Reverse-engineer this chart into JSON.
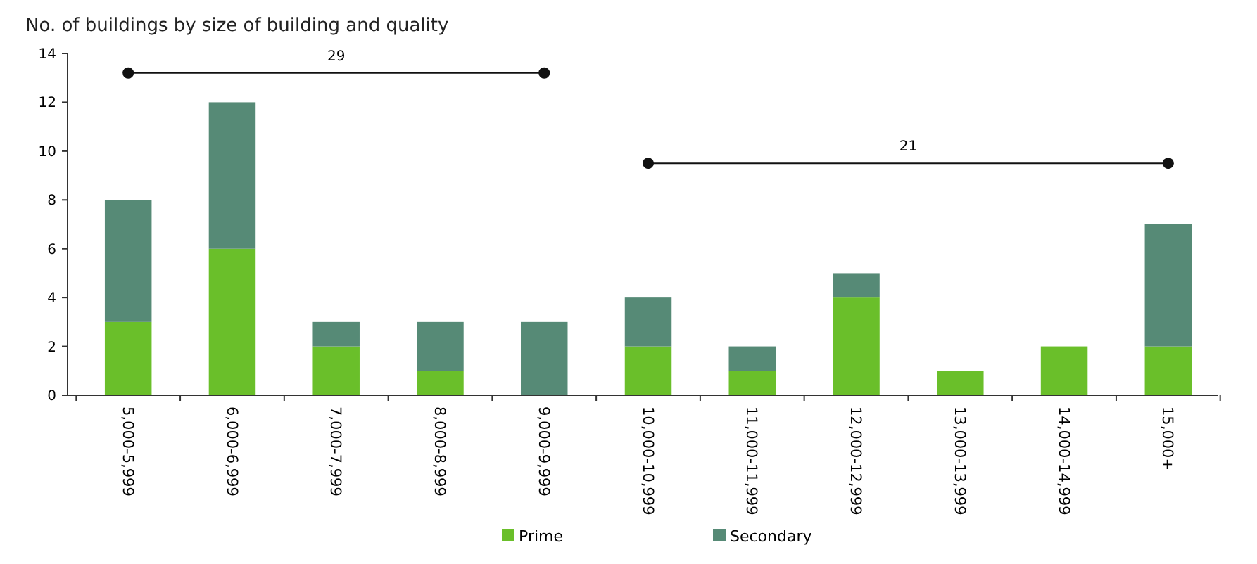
{
  "chart_data": {
    "type": "bar",
    "title": "No. of buildings by size of building and quality",
    "stacked": true,
    "categories": [
      "5,000-5,999",
      "6,000-6,999",
      "7,000-7,999",
      "8,000-8,999",
      "9,000-9,999",
      "10,000-10,999",
      "11,000-11,999",
      "12,000-12,999",
      "13,000-13,999",
      "14,000-14,999",
      "15,000+"
    ],
    "series": [
      {
        "name": "Prime",
        "color": "#6abf2a",
        "values": [
          3,
          6,
          2,
          1,
          0,
          2,
          1,
          4,
          1,
          2,
          2
        ]
      },
      {
        "name": "Secondary",
        "color": "#568a76",
        "values": [
          5,
          6,
          1,
          2,
          3,
          2,
          1,
          1,
          0,
          0,
          5
        ]
      }
    ],
    "ylim": [
      0,
      14
    ],
    "yticks": [
      0,
      2,
      4,
      6,
      8,
      10,
      12,
      14
    ],
    "legend": "bottom",
    "grid": false,
    "annotations": [
      "29",
      "21"
    ]
  }
}
